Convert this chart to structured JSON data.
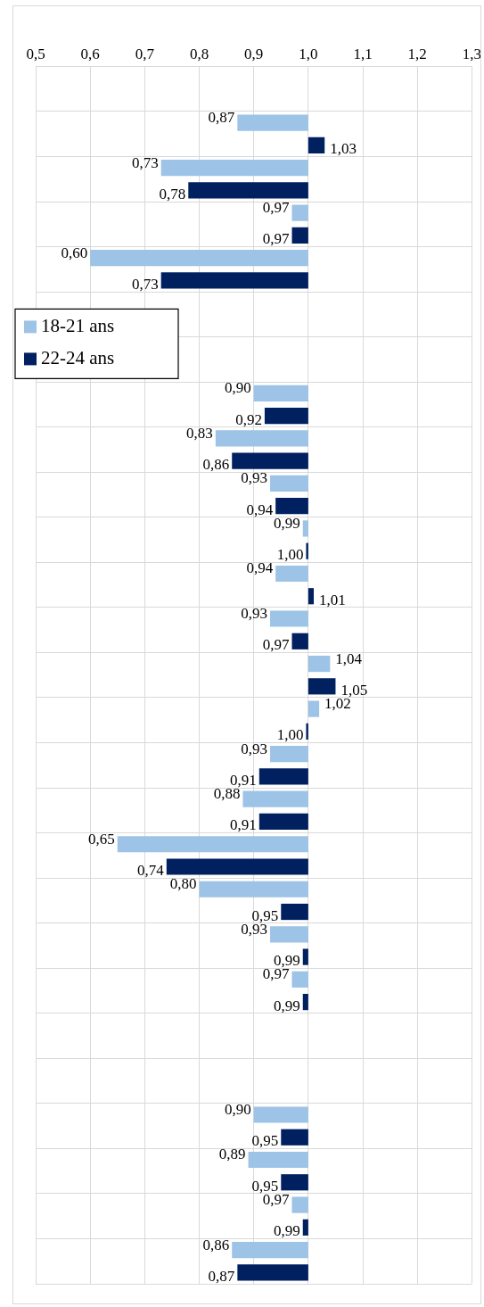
{
  "chart_data": {
    "type": "bar",
    "orientation": "horizontal",
    "categories": [
      null,
      null,
      null,
      null,
      null,
      null,
      null,
      null,
      null,
      null,
      null,
      null,
      null,
      null,
      null,
      null,
      null,
      null,
      null,
      null,
      null,
      null,
      null,
      null,
      null,
      null,
      null
    ],
    "series": [
      {
        "name": "18-21 ans",
        "color": "#9dc3e6",
        "base": [
          null,
          1,
          1,
          1,
          1,
          null,
          null,
          1,
          1,
          1,
          1,
          1,
          1,
          1,
          1,
          1,
          1,
          1,
          1,
          1,
          1,
          null,
          null,
          1,
          1,
          1,
          1
        ],
        "values": [
          null,
          -0.13,
          -0.27,
          -0.03,
          -0.4,
          null,
          null,
          -0.1,
          -0.17,
          -0.07,
          -0.01,
          -0.06,
          -0.07,
          0.04,
          0.02,
          -0.07,
          -0.12,
          -0.35,
          -0.2,
          -0.07,
          -0.03,
          null,
          null,
          -0.1,
          -0.11,
          -0.03,
          -0.14
        ],
        "value_labels": [
          null,
          "0,87",
          "0,73",
          "0,97",
          "0,60",
          null,
          null,
          "0,90",
          "0,83",
          "0,93",
          "0,99",
          "0,94",
          "0,93",
          "1,04",
          "1,02",
          "0,93",
          "0,88",
          "0,65",
          "0,80",
          "0,93",
          "0,97",
          null,
          null,
          "0,90",
          "0,89",
          "0,97",
          "0,86"
        ]
      },
      {
        "name": "22-24 ans",
        "color": "#002060",
        "base": [
          null,
          1,
          1,
          1,
          1,
          null,
          null,
          1,
          1,
          1,
          1,
          1,
          1,
          1,
          1,
          1,
          1,
          1,
          1,
          1,
          1,
          null,
          null,
          1,
          1,
          1,
          1
        ],
        "values": [
          null,
          0.03,
          -0.22,
          -0.03,
          -0.27,
          null,
          null,
          -0.08,
          -0.14,
          -0.06,
          -0.004,
          0.01,
          -0.03,
          0.05,
          -0.004,
          -0.09,
          -0.09,
          -0.26,
          -0.05,
          -0.01,
          -0.01,
          null,
          null,
          -0.05,
          -0.05,
          -0.01,
          -0.13
        ],
        "value_labels": [
          null,
          "1,03",
          "0,78",
          "0,97",
          "0,73",
          null,
          null,
          "0,92",
          "0,86",
          "0,94",
          "1,00",
          "1,01",
          "0,97",
          "1,05",
          "1,00",
          "0,91",
          "0,91",
          "0,74",
          "0,95",
          "0,99",
          "0,99",
          null,
          null,
          "0,95",
          "0,95",
          "0,99",
          "0,87"
        ]
      }
    ],
    "xlim": [
      0.5,
      1.3
    ],
    "xticks": [
      {
        "value": 0.5,
        "label": "0,5"
      },
      {
        "value": 0.6,
        "label": "0,6"
      },
      {
        "value": 0.7,
        "label": "0,7"
      },
      {
        "value": 0.8,
        "label": "0,8"
      },
      {
        "value": 0.9,
        "label": "0,9"
      },
      {
        "value": 1.0,
        "label": "1,0"
      },
      {
        "value": 1.1,
        "label": "1,1"
      },
      {
        "value": 1.2,
        "label": "1,2"
      },
      {
        "value": 1.3,
        "label": "1,3"
      }
    ],
    "tick_labels": "x",
    "grid": true,
    "legend": "top left"
  }
}
